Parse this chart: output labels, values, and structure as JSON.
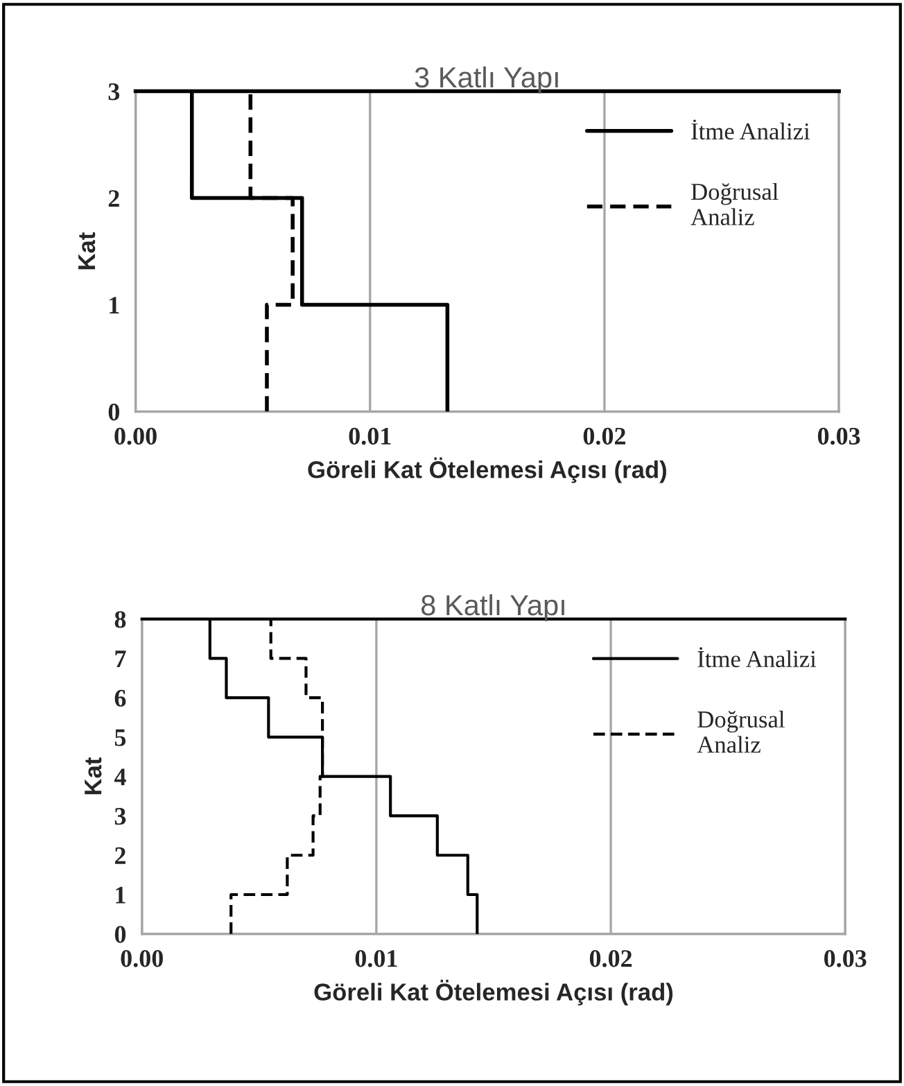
{
  "chart_data": [
    {
      "type": "line",
      "title": "3 Katlı Yapı",
      "xlabel": "Göreli Kat Ötelemesi Açısı (rad)",
      "ylabel": "Kat",
      "xlim": [
        0,
        0.03
      ],
      "xticks": [
        {
          "value": 0,
          "label": "0.00"
        },
        {
          "value": 0.01,
          "label": "0.01"
        },
        {
          "value": 0.02,
          "label": "0.02"
        },
        {
          "value": 0.03,
          "label": "0.03"
        }
      ],
      "ylim": [
        0,
        3
      ],
      "yticks": [
        0,
        1,
        2,
        3
      ],
      "grid": "x",
      "legend": "top right",
      "marker": "none",
      "series": [
        {
          "name": "İtme Analizi",
          "color": "#000000",
          "line_style": "solid",
          "x": [
            0.0133,
            0.0133,
            0.0071,
            0.0071,
            0.0024,
            0.0024
          ],
          "values": [
            0,
            1,
            1,
            2,
            2,
            3
          ]
        },
        {
          "name": "Doğrusal\nAnaliz",
          "color": "#000000",
          "line_style": "dashed",
          "x": [
            0.0056,
            0.0056,
            0.0067,
            0.0067,
            0.0049,
            0.0049
          ],
          "values": [
            0,
            1,
            1,
            2,
            2,
            3
          ]
        }
      ]
    },
    {
      "type": "line",
      "title": "8 Katlı Yapı",
      "xlabel": "Göreli Kat Ötelemesi Açısı (rad)",
      "ylabel": "Kat",
      "xlim": [
        0,
        0.03
      ],
      "xticks": [
        {
          "value": 0,
          "label": "0.00"
        },
        {
          "value": 0.01,
          "label": "0.01"
        },
        {
          "value": 0.02,
          "label": "0.02"
        },
        {
          "value": 0.03,
          "label": "0.03"
        }
      ],
      "ylim": [
        0,
        8
      ],
      "yticks": [
        0,
        1,
        2,
        3,
        4,
        5,
        6,
        7,
        8
      ],
      "grid": "x",
      "legend": "top right",
      "marker": "none",
      "series": [
        {
          "name": "İtme Analizi",
          "color": "#000000",
          "line_style": "solid",
          "x": [
            0.0143,
            0.0143,
            0.0139,
            0.0139,
            0.0126,
            0.0126,
            0.0106,
            0.0106,
            0.0077,
            0.0077,
            0.0054,
            0.0054,
            0.0036,
            0.0036,
            0.0029,
            0.0029
          ],
          "values": [
            0,
            1,
            1,
            2,
            2,
            3,
            3,
            4,
            4,
            5,
            5,
            6,
            6,
            7,
            7,
            8
          ]
        },
        {
          "name": "Doğrusal\nAnaliz",
          "color": "#000000",
          "line_style": "dashed",
          "x": [
            0.0038,
            0.0038,
            0.0062,
            0.0062,
            0.0073,
            0.0073,
            0.0076,
            0.0076,
            0.0077,
            0.0077,
            0.0077,
            0.0077,
            0.007,
            0.007,
            0.0055,
            0.0055
          ],
          "values": [
            0,
            1,
            1,
            2,
            2,
            3,
            3,
            4,
            4,
            5,
            5,
            6,
            6,
            7,
            7,
            8
          ]
        }
      ]
    }
  ]
}
